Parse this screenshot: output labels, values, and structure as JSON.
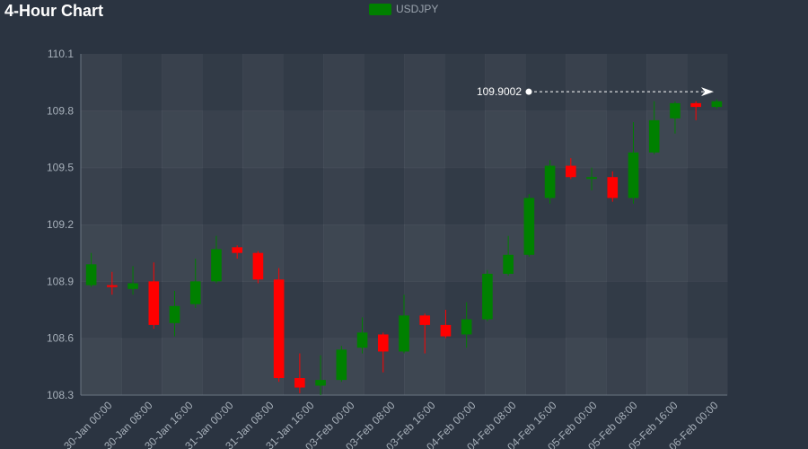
{
  "title": "4-Hour Chart",
  "legend": {
    "label": "USDJPY",
    "color": "#008000"
  },
  "colors": {
    "up": "#008000",
    "down": "#ff0000",
    "axis": "#6b7682",
    "annotation": "#ffffff"
  },
  "chart_data": {
    "type": "candlestick",
    "series_name": "USDJPY",
    "ylim": [
      108.3,
      110.1
    ],
    "y_ticks": [
      108.3,
      108.6,
      108.9,
      109.2,
      109.5,
      109.8,
      110.1
    ],
    "x_tick_labels": [
      "30-Jan 00:00",
      "30-Jan 08:00",
      "30-Jan 16:00",
      "31-Jan 00:00",
      "31-Jan 08:00",
      "31-Jan 16:00",
      "03-Feb 00:00",
      "03-Feb 08:00",
      "03-Feb 16:00",
      "04-Feb 00:00",
      "04-Feb 08:00",
      "04-Feb 16:00",
      "05-Feb 00:00",
      "05-Feb 08:00",
      "05-Feb 16:00",
      "06-Feb 00:00"
    ],
    "candles": [
      {
        "o": 108.88,
        "h": 109.05,
        "l": 108.87,
        "c": 108.99
      },
      {
        "o": 108.88,
        "h": 108.95,
        "l": 108.83,
        "c": 108.87
      },
      {
        "o": 108.86,
        "h": 108.98,
        "l": 108.83,
        "c": 108.89
      },
      {
        "o": 108.9,
        "h": 109.0,
        "l": 108.65,
        "c": 108.67
      },
      {
        "o": 108.68,
        "h": 108.85,
        "l": 108.61,
        "c": 108.77
      },
      {
        "o": 108.78,
        "h": 109.02,
        "l": 108.76,
        "c": 108.9
      },
      {
        "o": 108.9,
        "h": 109.14,
        "l": 108.89,
        "c": 109.07
      },
      {
        "o": 109.08,
        "h": 109.09,
        "l": 109.02,
        "c": 109.05
      },
      {
        "o": 109.05,
        "h": 109.06,
        "l": 108.89,
        "c": 108.91
      },
      {
        "o": 108.91,
        "h": 108.97,
        "l": 108.37,
        "c": 108.39
      },
      {
        "o": 108.39,
        "h": 108.52,
        "l": 108.31,
        "c": 108.34
      },
      {
        "o": 108.35,
        "h": 108.51,
        "l": 108.3,
        "c": 108.38
      },
      {
        "o": 108.38,
        "h": 108.56,
        "l": 108.37,
        "c": 108.54
      },
      {
        "o": 108.55,
        "h": 108.71,
        "l": 108.52,
        "c": 108.63
      },
      {
        "o": 108.62,
        "h": 108.63,
        "l": 108.42,
        "c": 108.53
      },
      {
        "o": 108.53,
        "h": 108.83,
        "l": 108.52,
        "c": 108.72
      },
      {
        "o": 108.72,
        "h": 108.73,
        "l": 108.52,
        "c": 108.67
      },
      {
        "o": 108.67,
        "h": 108.75,
        "l": 108.6,
        "c": 108.61
      },
      {
        "o": 108.62,
        "h": 108.79,
        "l": 108.55,
        "c": 108.7
      },
      {
        "o": 108.7,
        "h": 108.96,
        "l": 108.69,
        "c": 108.94
      },
      {
        "o": 108.94,
        "h": 109.14,
        "l": 108.93,
        "c": 109.04
      },
      {
        "o": 109.04,
        "h": 109.36,
        "l": 109.03,
        "c": 109.34
      },
      {
        "o": 109.34,
        "h": 109.54,
        "l": 109.31,
        "c": 109.51
      },
      {
        "o": 109.51,
        "h": 109.55,
        "l": 109.44,
        "c": 109.45
      },
      {
        "o": 109.45,
        "h": 109.5,
        "l": 109.38,
        "c": 109.45
      },
      {
        "o": 109.45,
        "h": 109.48,
        "l": 109.32,
        "c": 109.34
      },
      {
        "o": 109.34,
        "h": 109.74,
        "l": 109.31,
        "c": 109.58
      },
      {
        "o": 109.58,
        "h": 109.85,
        "l": 109.57,
        "c": 109.75
      },
      {
        "o": 109.76,
        "h": 109.85,
        "l": 109.68,
        "c": 109.84
      },
      {
        "o": 109.84,
        "h": 109.85,
        "l": 109.75,
        "c": 109.82
      },
      {
        "o": 109.82,
        "h": 109.86,
        "l": 109.81,
        "c": 109.85
      }
    ],
    "annotation": {
      "label": "109.9002",
      "value": 109.9002
    }
  }
}
